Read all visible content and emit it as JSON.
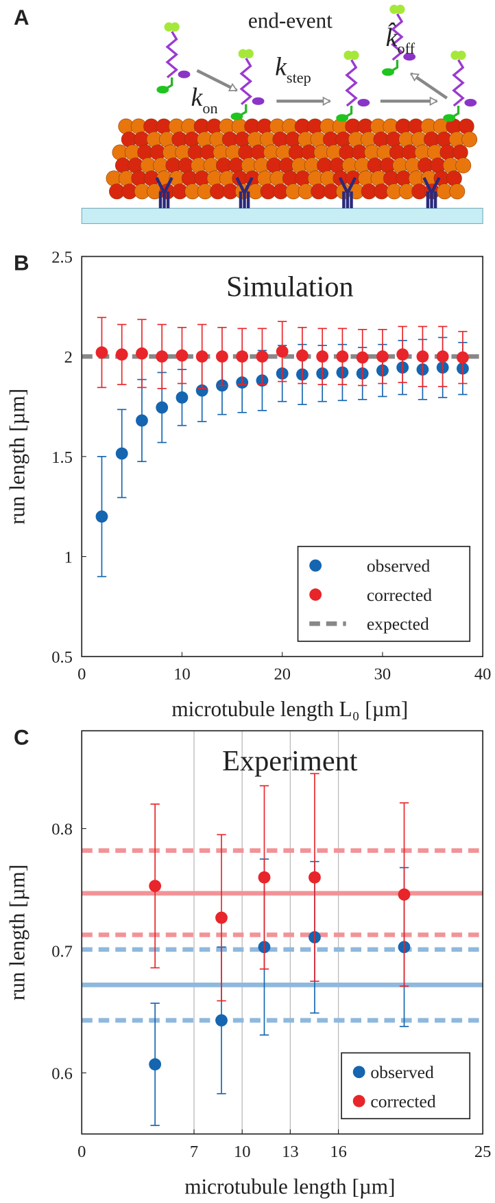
{
  "illustration": {
    "panel_label": "A",
    "caption": "end-event",
    "rates": [
      {
        "symbol": "k",
        "subscript": "on"
      },
      {
        "symbol": "k",
        "subscript": "step"
      },
      {
        "symbol": "k̂",
        "subscript": "off"
      }
    ]
  },
  "chart_data": [
    {
      "type": "scatter",
      "panel_label": "B",
      "title": "Simulation",
      "xlabel": "microtubule length L₀ [µm]",
      "ylabel": "run length [µm]",
      "xlim": [
        0,
        40
      ],
      "xticks": [
        0,
        10,
        20,
        30,
        40
      ],
      "ylim": [
        0.5,
        2.5
      ],
      "yticks": [
        0.5,
        1,
        1.5,
        2,
        2.5
      ],
      "x": [
        2,
        4,
        6,
        8,
        10,
        12,
        14,
        16,
        18,
        20,
        22,
        24,
        26,
        28,
        30,
        32,
        34,
        36,
        38
      ],
      "series": [
        {
          "name": "observed",
          "color": "#1565b0",
          "values": [
            1.2,
            1.515,
            1.68,
            1.745,
            1.795,
            1.83,
            1.855,
            1.87,
            1.88,
            1.915,
            1.91,
            1.915,
            1.92,
            1.915,
            1.93,
            1.945,
            1.935,
            1.945,
            1.94
          ],
          "errors": [
            0.3,
            0.22,
            0.205,
            0.175,
            0.14,
            0.155,
            0.145,
            0.15,
            0.15,
            0.14,
            0.15,
            0.14,
            0.14,
            0.13,
            0.13,
            0.135,
            0.15,
            0.15,
            0.13
          ]
        },
        {
          "name": "corrected",
          "color": "#e8252a",
          "values": [
            2.02,
            2.01,
            2.015,
            2.0,
            2.005,
            2.0,
            2.0,
            2.0,
            2.0,
            2.025,
            2.005,
            2.0,
            2.0,
            1.995,
            2.0,
            2.01,
            2.0,
            2.0,
            1.995
          ],
          "errors": [
            0.175,
            0.15,
            0.17,
            0.16,
            0.14,
            0.16,
            0.145,
            0.14,
            0.14,
            0.15,
            0.14,
            0.14,
            0.14,
            0.14,
            0.135,
            0.14,
            0.15,
            0.15,
            0.13
          ]
        }
      ],
      "reference_lines": [
        {
          "name": "expected",
          "value": 2,
          "color": "#888888"
        }
      ],
      "legend": "lower right",
      "xgrid": false
    },
    {
      "type": "scatter",
      "panel_label": "C",
      "title": "Experiment",
      "xlabel": "microtubule length [µm]",
      "ylabel": "run length [µm]",
      "xlim": [
        0,
        25
      ],
      "xticks": [
        0,
        7,
        10,
        13,
        16,
        25
      ],
      "ylim": [
        0.55,
        0.88
      ],
      "yticks": [
        0.6,
        0.7,
        0.8
      ],
      "x": [
        4.57,
        8.71,
        11.38,
        14.52,
        20.1
      ],
      "series": [
        {
          "name": "observed",
          "color": "#1565b0",
          "values": [
            0.607,
            0.643,
            0.703,
            0.711,
            0.703
          ],
          "errors": [
            0.05,
            0.06,
            0.072,
            0.062,
            0.065
          ]
        },
        {
          "name": "corrected",
          "color": "#e8252a",
          "values": [
            0.753,
            0.727,
            0.76,
            0.76,
            0.746
          ],
          "errors": [
            0.067,
            0.068,
            0.075,
            0.085,
            0.075
          ]
        }
      ],
      "bands": [
        {
          "color": "#8fb8dd",
          "mean": 0.672,
          "lower": 0.643,
          "upper": 0.701
        },
        {
          "color": "#f29397",
          "mean": 0.747,
          "lower": 0.713,
          "upper": 0.782
        }
      ],
      "legend": "lower right",
      "xgrid": true
    }
  ]
}
